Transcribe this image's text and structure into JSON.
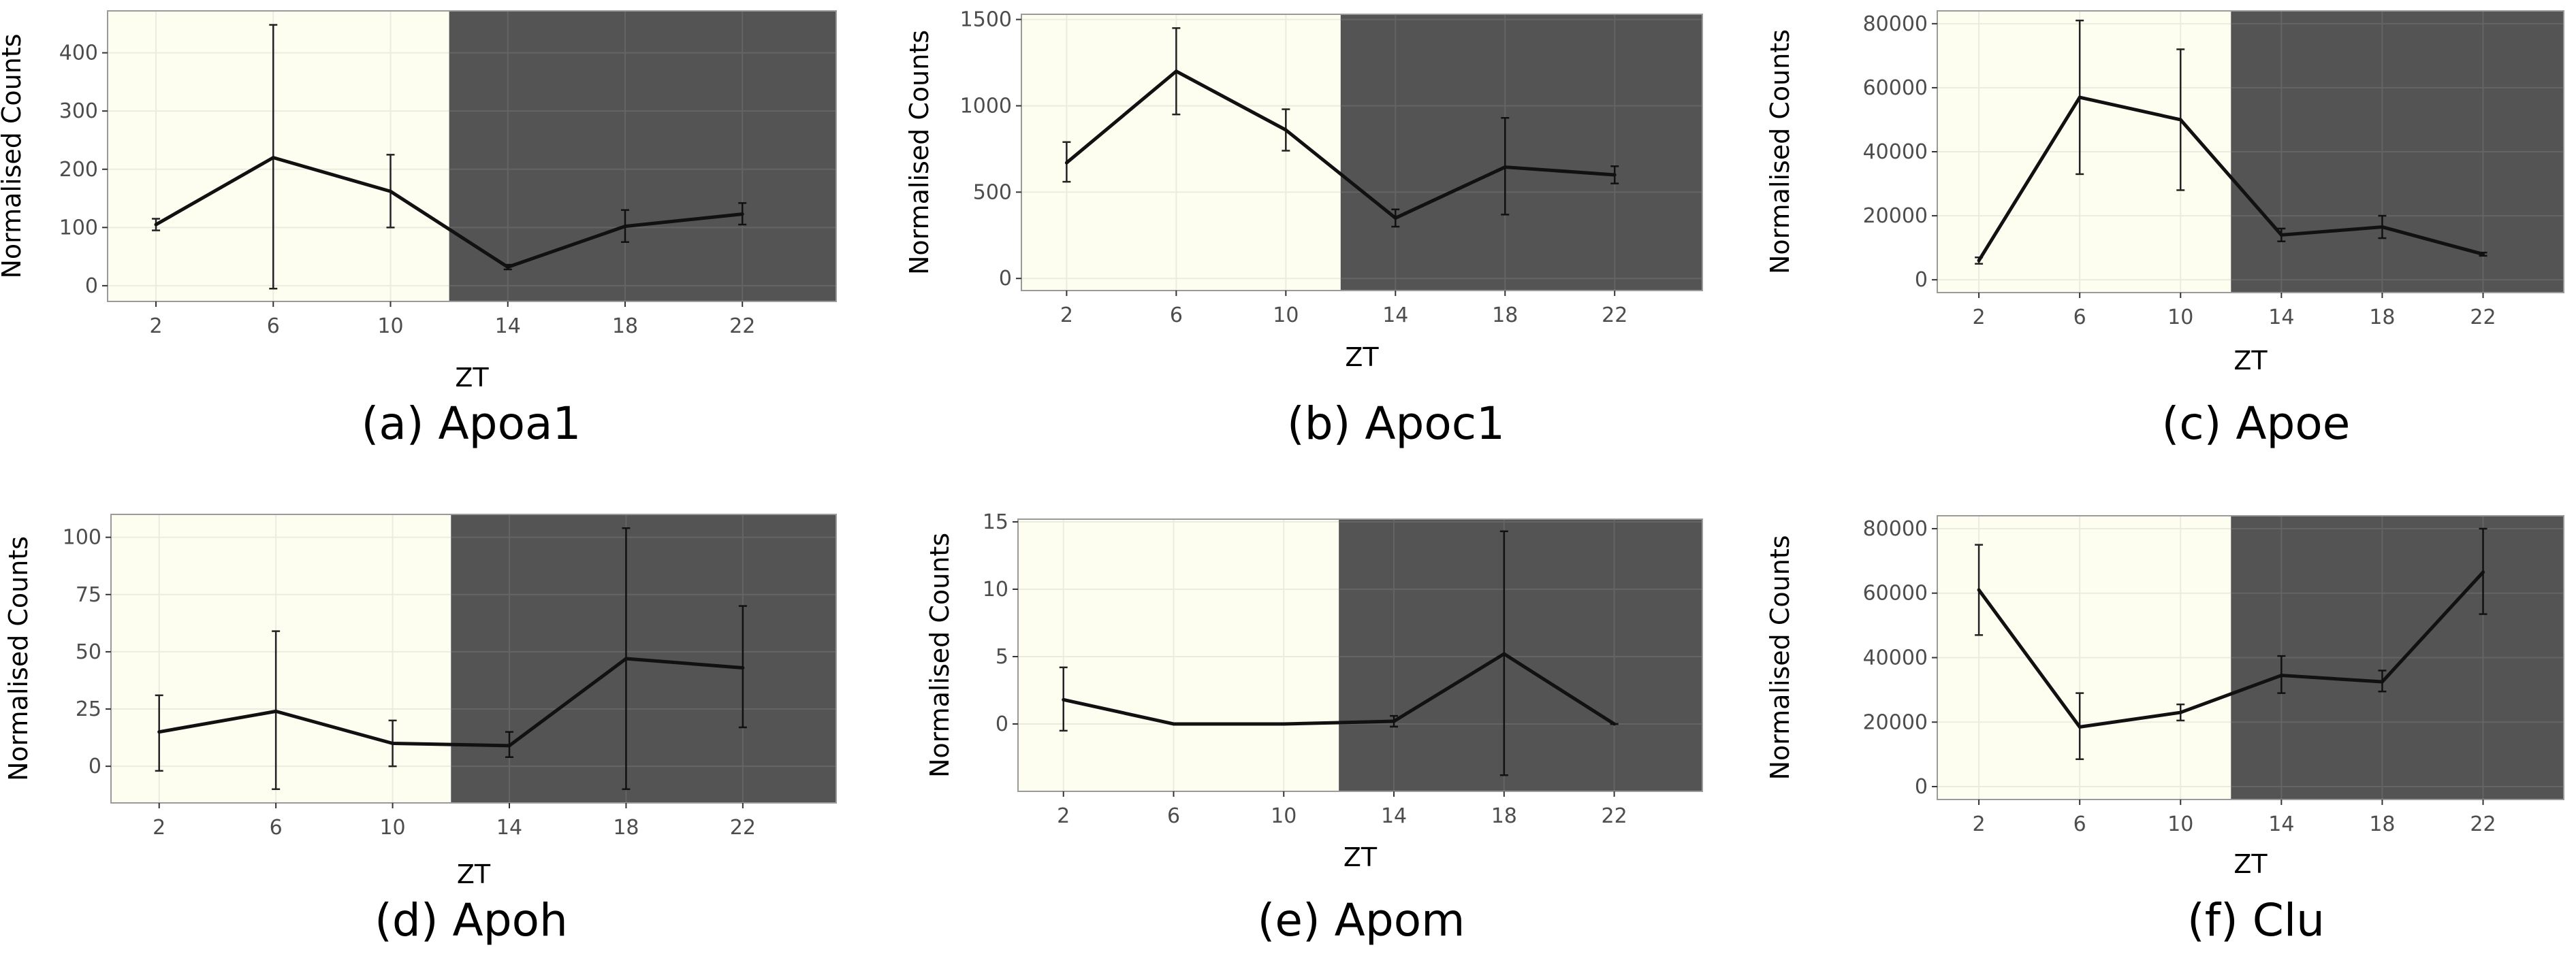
{
  "colors": {
    "light_phase": "#fefef0",
    "dark_phase": "#545454",
    "grid_light": "#ebebe0",
    "grid_dark": "#646464",
    "line": "#111111",
    "border": "#9a9a9a"
  },
  "chart_data": [
    {
      "type": "line",
      "title": "(a)  Apoa1",
      "xlabel": "ZT",
      "ylabel": "Normalised Counts",
      "x": [
        2,
        6,
        10,
        14,
        18,
        22
      ],
      "y": [
        105,
        220,
        162,
        32,
        102,
        123
      ],
      "yerr_low": [
        95,
        -5,
        100,
        28,
        75,
        105
      ],
      "yerr_high": [
        115,
        448,
        225,
        36,
        130,
        142
      ],
      "xticks": [
        2,
        6,
        10,
        14,
        18,
        22
      ],
      "yticks": [
        0,
        100,
        200,
        300,
        400
      ],
      "xlim": [
        0.35,
        25.2
      ],
      "ylim": [
        -27,
        472
      ],
      "light_dark_boundary": 12,
      "grid": true
    },
    {
      "type": "line",
      "title": "(b)  Apoc1",
      "xlabel": "ZT",
      "ylabel": "Normalised Counts",
      "x": [
        2,
        6,
        10,
        14,
        18,
        22
      ],
      "y": [
        670,
        1200,
        860,
        350,
        645,
        600
      ],
      "yerr_low": [
        560,
        950,
        740,
        300,
        370,
        550
      ],
      "yerr_high": [
        790,
        1450,
        980,
        400,
        930,
        650
      ],
      "xticks": [
        2,
        6,
        10,
        14,
        18,
        22
      ],
      "yticks": [
        0,
        500,
        1000,
        1500
      ],
      "xlim": [
        0.35,
        25.2
      ],
      "ylim": [
        -70,
        1530
      ],
      "light_dark_boundary": 12,
      "grid": true
    },
    {
      "type": "line",
      "title": "(c) Apoe",
      "xlabel": "ZT",
      "ylabel": "Normalised Counts",
      "x": [
        2,
        6,
        10,
        14,
        18,
        22
      ],
      "y": [
        6000,
        57000,
        50000,
        14000,
        16500,
        8000
      ],
      "yerr_low": [
        5000,
        33000,
        28000,
        12000,
        13000,
        7500
      ],
      "yerr_high": [
        7000,
        81000,
        72000,
        16000,
        20000,
        8500
      ],
      "xticks": [
        2,
        6,
        10,
        14,
        18,
        22
      ],
      "yticks": [
        0,
        20000,
        40000,
        60000,
        80000
      ],
      "xlim": [
        0.35,
        25.2
      ],
      "ylim": [
        -4000,
        84000
      ],
      "light_dark_boundary": 12,
      "grid": true
    },
    {
      "type": "line",
      "title": "(d)  Apoh",
      "xlabel": "ZT",
      "ylabel": "Normalised Counts",
      "x": [
        2,
        6,
        10,
        14,
        18,
        22
      ],
      "y": [
        15,
        24,
        10,
        9,
        47,
        43
      ],
      "yerr_low": [
        -2,
        -10,
        0,
        4,
        -10,
        17
      ],
      "yerr_high": [
        31,
        59,
        20,
        15,
        104,
        70
      ],
      "xticks": [
        2,
        6,
        10,
        14,
        18,
        22
      ],
      "yticks": [
        0,
        25,
        50,
        75,
        100
      ],
      "xlim": [
        0.35,
        25.2
      ],
      "ylim": [
        -16,
        110
      ],
      "light_dark_boundary": 12,
      "grid": true
    },
    {
      "type": "line",
      "title": "(e)  Apom",
      "xlabel": "ZT",
      "ylabel": "Normalised Counts",
      "x": [
        2,
        6,
        10,
        14,
        18,
        22
      ],
      "y": [
        1.8,
        0,
        0,
        0.2,
        5.2,
        0
      ],
      "yerr_low": [
        -0.5,
        0,
        0,
        -0.2,
        -3.8,
        0
      ],
      "yerr_high": [
        4.2,
        0,
        0,
        0.6,
        14.3,
        0
      ],
      "xticks": [
        2,
        6,
        10,
        14,
        18,
        22
      ],
      "yticks": [
        0,
        5,
        10,
        15
      ],
      "xlim": [
        0.35,
        25.2
      ],
      "ylim": [
        -5,
        15.2
      ],
      "light_dark_boundary": 12,
      "grid": true
    },
    {
      "type": "line",
      "title": "(f) Clu",
      "xlabel": "ZT",
      "ylabel": "Normalised Counts",
      "x": [
        2,
        6,
        10,
        14,
        18,
        22
      ],
      "y": [
        61000,
        18500,
        23000,
        34500,
        32500,
        66500
      ],
      "yerr_low": [
        47000,
        8500,
        20500,
        29000,
        29500,
        53500
      ],
      "yerr_high": [
        75000,
        29000,
        25500,
        40500,
        36000,
        80000
      ],
      "xticks": [
        2,
        6,
        10,
        14,
        18,
        22
      ],
      "yticks": [
        0,
        20000,
        40000,
        60000,
        80000
      ],
      "xlim": [
        0.35,
        25.2
      ],
      "ylim": [
        -4000,
        84000
      ],
      "light_dark_boundary": 12,
      "grid": true
    }
  ]
}
